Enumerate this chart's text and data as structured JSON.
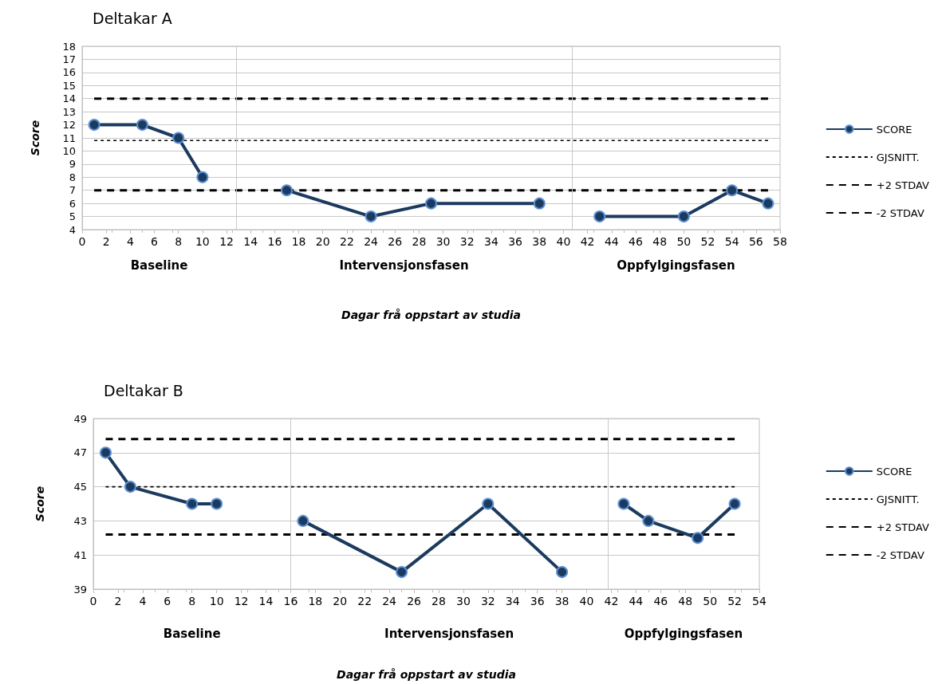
{
  "chart_data": [
    {
      "type": "line",
      "title": "Deltakar A",
      "xlabel": "Dagar frå oppstart av studia",
      "ylabel": "Score",
      "xlim": [
        0,
        58
      ],
      "xticks": [
        0,
        2,
        4,
        6,
        8,
        10,
        12,
        14,
        16,
        18,
        20,
        22,
        24,
        26,
        28,
        30,
        32,
        34,
        36,
        38,
        40,
        42,
        44,
        46,
        48,
        50,
        52,
        54,
        56,
        58
      ],
      "ylim": [
        4,
        18
      ],
      "yticks": [
        4,
        5,
        6,
        7,
        8,
        9,
        10,
        11,
        12,
        13,
        14,
        15,
        16,
        17,
        18
      ],
      "grid": "y",
      "legend": "right",
      "annotations": [
        "Baseline",
        "Intervensjonsfasen",
        "Oppfylgingsfasen"
      ],
      "ref_lines": [
        {
          "axis": "x",
          "value": 12.8,
          "color": "#c8c8c8"
        },
        {
          "axis": "x",
          "value": 40.7,
          "color": "#c8c8c8"
        }
      ],
      "series": [
        {
          "name": "SCORE",
          "color": "#1b3a5f",
          "marker": "circle",
          "line_style": "solid",
          "x": [
            1,
            5,
            8,
            10,
            14,
            17,
            24,
            29,
            38,
            42,
            43,
            50,
            54,
            57
          ],
          "values": [
            12,
            12,
            11,
            8,
            null,
            7,
            5,
            6,
            6,
            null,
            5,
            5,
            7,
            6
          ]
        },
        {
          "name": "GJSNITT.",
          "color": "#000000",
          "marker": "none",
          "line_style": "dotted",
          "x": [
            1,
            57
          ],
          "values": [
            10.8,
            10.8
          ]
        },
        {
          "name": "+2 STDAV",
          "color": "#000000",
          "marker": "none",
          "line_style": "dashed",
          "x": [
            1,
            57
          ],
          "values": [
            14,
            14
          ]
        },
        {
          "name": "-2 STDAV",
          "color": "#000000",
          "marker": "none",
          "line_style": "dashed",
          "x": [
            1,
            57
          ],
          "values": [
            7,
            7
          ]
        }
      ]
    },
    {
      "type": "line",
      "title": "Deltakar B",
      "xlabel": "Dagar frå oppstart av studia",
      "ylabel": "Score",
      "xlim": [
        0,
        54
      ],
      "xticks": [
        0,
        2,
        4,
        6,
        8,
        10,
        12,
        14,
        16,
        18,
        20,
        22,
        24,
        26,
        28,
        30,
        32,
        34,
        36,
        38,
        40,
        42,
        44,
        46,
        48,
        50,
        52,
        54
      ],
      "ylim": [
        39,
        49
      ],
      "yticks": [
        39,
        41,
        43,
        45,
        47,
        49
      ],
      "grid": "y",
      "legend": "right",
      "annotations": [
        "Baseline",
        "Intervensjonsfasen",
        "Oppfylgingsfasen"
      ],
      "ref_lines": [
        {
          "axis": "x",
          "value": 16,
          "color": "#c8c8c8"
        },
        {
          "axis": "x",
          "value": 41.7,
          "color": "#c8c8c8"
        }
      ],
      "series": [
        {
          "name": "SCORE",
          "color": "#1b3a5f",
          "marker": "circle",
          "line_style": "solid",
          "x": [
            1,
            3,
            8,
            10,
            14,
            17,
            25,
            32,
            38,
            42,
            43,
            45,
            49,
            52
          ],
          "values": [
            47,
            45,
            44,
            44,
            null,
            43,
            40,
            44,
            40,
            null,
            44,
            43,
            42,
            44
          ]
        },
        {
          "name": "GJSNITT.",
          "color": "#000000",
          "marker": "none",
          "line_style": "dotted",
          "x": [
            1,
            52
          ],
          "values": [
            45,
            45
          ]
        },
        {
          "name": "+2 STDAV",
          "color": "#000000",
          "marker": "none",
          "line_style": "dashed",
          "x": [
            1,
            52
          ],
          "values": [
            47.8,
            47.8
          ]
        },
        {
          "name": "-2 STDAV",
          "color": "#000000",
          "marker": "none",
          "line_style": "dashed",
          "x": [
            1,
            52
          ],
          "values": [
            42.2,
            42.2
          ]
        }
      ]
    }
  ]
}
